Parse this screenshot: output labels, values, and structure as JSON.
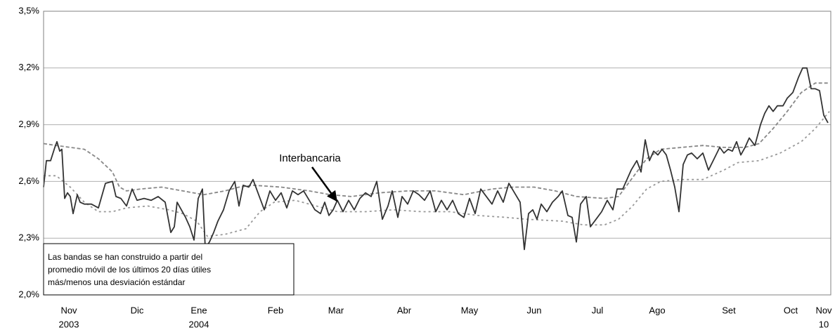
{
  "chart_data": {
    "type": "line",
    "ylim": [
      2.0,
      3.5
    ],
    "yticks": [
      {
        "value": 2.0,
        "label": "2,0%"
      },
      {
        "value": 2.3,
        "label": "2,3%"
      },
      {
        "value": 2.6,
        "label": "2,6%"
      },
      {
        "value": 2.9,
        "label": "2,9%"
      },
      {
        "value": 3.2,
        "label": "3,2%"
      },
      {
        "value": 3.5,
        "label": "3,5%"
      }
    ],
    "xlim": [
      0,
      1120
    ],
    "xticks": [
      {
        "value": 36,
        "label": "Nov"
      },
      {
        "value": 133,
        "label": "Dic"
      },
      {
        "value": 221,
        "label": "Ene"
      },
      {
        "value": 330,
        "label": "Feb"
      },
      {
        "value": 416,
        "label": "Mar"
      },
      {
        "value": 513,
        "label": "Abr"
      },
      {
        "value": 606,
        "label": "May"
      },
      {
        "value": 698,
        "label": "Jun"
      },
      {
        "value": 788,
        "label": "Jul"
      },
      {
        "value": 873,
        "label": "Ago"
      },
      {
        "value": 975,
        "label": "Set"
      },
      {
        "value": 1063,
        "label": "Oct"
      },
      {
        "value": 1110,
        "label": "Nov"
      }
    ],
    "xsublabels": [
      {
        "value": 36,
        "label": "2003"
      },
      {
        "value": 221,
        "label": "2004"
      },
      {
        "value": 1110,
        "label": "10"
      }
    ],
    "grid": true,
    "annotations": [
      "Interbancaria"
    ],
    "note": [
      "Las bandas se han construido a partir del",
      "promedio móvil de los últimos 20 días útiles",
      "más/menos una desviación estándar"
    ],
    "series": [
      {
        "color": "#333333",
        "style": "solid",
        "x": [
          0,
          4,
          10,
          16,
          19,
          23,
          26,
          30,
          34,
          38,
          42,
          48,
          52,
          58,
          68,
          78,
          88,
          98,
          103,
          110,
          118,
          126,
          133,
          143,
          153,
          163,
          173,
          181,
          186,
          190,
          196,
          202,
          208,
          214,
          220,
          226,
          230,
          236,
          242,
          248,
          256,
          264,
          272,
          278,
          284,
          292,
          298,
          306,
          314,
          322,
          330,
          338,
          346,
          354,
          362,
          370,
          378,
          386,
          394,
          400,
          406,
          412,
          418,
          426,
          434,
          442,
          450,
          458,
          466,
          474,
          482,
          490,
          496,
          504,
          510,
          518,
          526,
          534,
          542,
          550,
          558,
          566,
          574,
          582,
          590,
          598,
          606,
          614,
          622,
          630,
          638,
          646,
          654,
          662,
          670,
          678,
          684,
          690,
          696,
          702,
          708,
          716,
          724,
          732,
          738,
          746,
          752,
          758,
          764,
          772,
          778,
          786,
          794,
          802,
          810,
          816,
          824,
          830,
          836,
          844,
          850,
          856,
          862,
          868,
          874,
          880,
          886,
          892,
          898,
          904,
          910,
          916,
          922,
          930,
          938,
          946,
          954,
          962,
          968,
          974,
          980,
          986,
          992,
          998,
          1004,
          1012,
          1020,
          1026,
          1032,
          1038,
          1044,
          1052,
          1058,
          1066,
          1074,
          1080,
          1086,
          1092,
          1098,
          1104,
          1110,
          1116
        ],
        "values": [
          2.57,
          2.71,
          2.71,
          2.78,
          2.81,
          2.76,
          2.77,
          2.51,
          2.54,
          2.52,
          2.43,
          2.53,
          2.49,
          2.48,
          2.48,
          2.46,
          2.59,
          2.6,
          2.52,
          2.51,
          2.47,
          2.56,
          2.5,
          2.51,
          2.5,
          2.52,
          2.49,
          2.33,
          2.36,
          2.49,
          2.45,
          2.41,
          2.36,
          2.29,
          2.51,
          2.56,
          2.25,
          2.28,
          2.33,
          2.39,
          2.45,
          2.55,
          2.6,
          2.47,
          2.58,
          2.57,
          2.61,
          2.53,
          2.45,
          2.55,
          2.5,
          2.54,
          2.46,
          2.55,
          2.53,
          2.55,
          2.5,
          2.45,
          2.43,
          2.49,
          2.42,
          2.45,
          2.5,
          2.44,
          2.5,
          2.45,
          2.51,
          2.54,
          2.52,
          2.6,
          2.4,
          2.47,
          2.55,
          2.41,
          2.52,
          2.48,
          2.55,
          2.53,
          2.5,
          2.55,
          2.44,
          2.5,
          2.45,
          2.5,
          2.43,
          2.41,
          2.51,
          2.43,
          2.56,
          2.52,
          2.48,
          2.55,
          2.49,
          2.59,
          2.54,
          2.49,
          2.24,
          2.43,
          2.45,
          2.4,
          2.48,
          2.44,
          2.49,
          2.52,
          2.55,
          2.42,
          2.41,
          2.28,
          2.48,
          2.52,
          2.36,
          2.4,
          2.44,
          2.5,
          2.45,
          2.56,
          2.56,
          2.61,
          2.66,
          2.71,
          2.65,
          2.82,
          2.71,
          2.76,
          2.74,
          2.77,
          2.74,
          2.66,
          2.57,
          2.44,
          2.69,
          2.74,
          2.75,
          2.72,
          2.75,
          2.66,
          2.72,
          2.78,
          2.75,
          2.77,
          2.76,
          2.81,
          2.74,
          2.78,
          2.83,
          2.79,
          2.9,
          2.96,
          3.0,
          2.97,
          3.0,
          3.0,
          3.04,
          3.07,
          3.15,
          3.2,
          3.2,
          3.09,
          3.09,
          3.08,
          2.95,
          2.91
        ]
      },
      {
        "color": "#888888",
        "style": "dashed",
        "x": [
          0,
          18,
          38,
          58,
          78,
          98,
          108,
          118,
          138,
          168,
          198,
          228,
          258,
          278,
          298,
          338,
          378,
          408,
          438,
          478,
          518,
          558,
          598,
          638,
          668,
          698,
          728,
          758,
          798,
          818,
          838,
          858,
          878,
          908,
          938,
          968,
          998,
          1018,
          1038,
          1058,
          1078,
          1098,
          1118
        ],
        "values": [
          2.8,
          2.79,
          2.78,
          2.77,
          2.72,
          2.65,
          2.57,
          2.55,
          2.56,
          2.57,
          2.55,
          2.53,
          2.55,
          2.57,
          2.58,
          2.57,
          2.55,
          2.53,
          2.52,
          2.54,
          2.55,
          2.55,
          2.53,
          2.56,
          2.57,
          2.57,
          2.55,
          2.52,
          2.51,
          2.52,
          2.62,
          2.72,
          2.77,
          2.78,
          2.79,
          2.78,
          2.78,
          2.8,
          2.88,
          2.97,
          3.07,
          3.12,
          3.12
        ]
      },
      {
        "color": "#999999",
        "style": "dotted",
        "x": [
          0,
          18,
          38,
          58,
          78,
          98,
          118,
          148,
          178,
          198,
          218,
          233,
          258,
          288,
          308,
          328,
          358,
          388,
          418,
          458,
          498,
          538,
          578,
          618,
          658,
          688,
          738,
          768,
          798,
          818,
          838,
          858,
          878,
          908,
          938,
          968,
          988,
          1018,
          1048,
          1078,
          1098,
          1118
        ],
        "values": [
          2.63,
          2.63,
          2.57,
          2.49,
          2.44,
          2.44,
          2.46,
          2.47,
          2.45,
          2.43,
          2.39,
          2.31,
          2.32,
          2.35,
          2.44,
          2.49,
          2.5,
          2.47,
          2.44,
          2.44,
          2.45,
          2.44,
          2.44,
          2.42,
          2.41,
          2.4,
          2.39,
          2.37,
          2.37,
          2.4,
          2.47,
          2.56,
          2.6,
          2.61,
          2.61,
          2.66,
          2.7,
          2.71,
          2.75,
          2.81,
          2.88,
          2.97
        ]
      }
    ]
  }
}
